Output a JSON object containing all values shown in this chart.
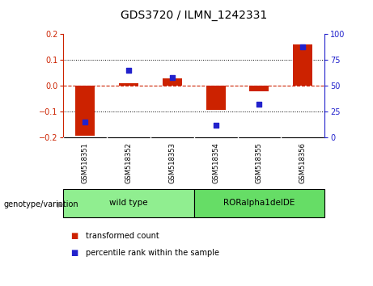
{
  "title": "GDS3720 / ILMN_1242331",
  "samples": [
    "GSM518351",
    "GSM518352",
    "GSM518353",
    "GSM518354",
    "GSM518355",
    "GSM518356"
  ],
  "red_bars": [
    -0.195,
    0.01,
    0.03,
    -0.095,
    -0.02,
    0.16
  ],
  "blue_dots_pct": [
    15,
    65,
    58,
    12,
    32,
    88
  ],
  "ylim_left": [
    -0.2,
    0.2
  ],
  "ylim_right": [
    0,
    100
  ],
  "yticks_left": [
    -0.2,
    -0.1,
    0.0,
    0.1,
    0.2
  ],
  "yticks_right": [
    0,
    25,
    50,
    75,
    100
  ],
  "groups": [
    {
      "label": "wild type",
      "start": 0,
      "end": 2,
      "color": "#90EE90"
    },
    {
      "label": "RORalpha1delDE",
      "start": 3,
      "end": 5,
      "color": "#66DD66"
    }
  ],
  "group_label": "genotype/variation",
  "legend_red": "transformed count",
  "legend_blue": "percentile rank within the sample",
  "red_color": "#CC2200",
  "blue_color": "#2222CC",
  "bg_plot": "#FFFFFF",
  "bg_sample_row": "#C8C8C8",
  "zero_line_color": "#CC2200",
  "title_fontsize": 10,
  "tick_fontsize": 7,
  "axis_label_fontsize": 7
}
